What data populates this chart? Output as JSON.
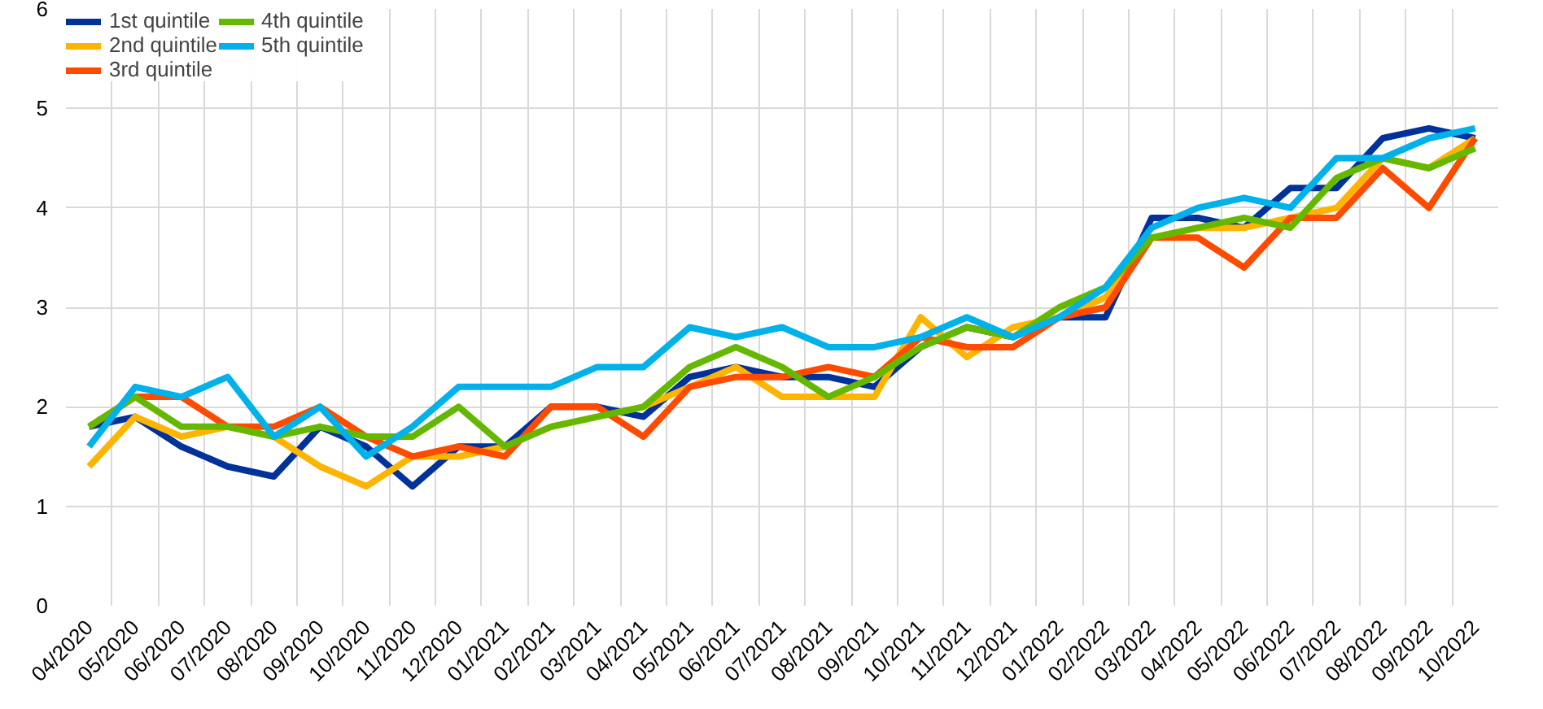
{
  "chart_data": {
    "type": "line",
    "categories": [
      "04/2020",
      "05/2020",
      "06/2020",
      "07/2020",
      "08/2020",
      "09/2020",
      "10/2020",
      "11/2020",
      "12/2020",
      "01/2021",
      "02/2021",
      "03/2021",
      "04/2021",
      "05/2021",
      "06/2021",
      "07/2021",
      "08/2021",
      "09/2021",
      "10/2021",
      "11/2021",
      "12/2021",
      "01/2022",
      "02/2022",
      "03/2022",
      "04/2022",
      "05/2022",
      "06/2022",
      "07/2022",
      "08/2022",
      "09/2022",
      "10/2022"
    ],
    "series": [
      {
        "name": "1st quintile",
        "color": "#003299",
        "values": [
          1.8,
          1.9,
          1.6,
          1.4,
          1.3,
          1.8,
          1.6,
          1.2,
          1.6,
          1.6,
          2.0,
          2.0,
          1.9,
          2.3,
          2.4,
          2.3,
          2.3,
          2.2,
          2.6,
          2.8,
          2.7,
          2.9,
          2.9,
          3.9,
          3.9,
          3.8,
          4.2,
          4.2,
          4.7,
          4.8,
          4.7
        ]
      },
      {
        "name": "2nd quintile",
        "color": "#ffb400",
        "values": [
          1.4,
          1.9,
          1.7,
          1.8,
          1.7,
          1.4,
          1.2,
          1.5,
          1.5,
          1.6,
          1.8,
          1.9,
          2.0,
          2.2,
          2.4,
          2.1,
          2.1,
          2.1,
          2.9,
          2.5,
          2.8,
          2.9,
          3.1,
          3.7,
          3.8,
          3.8,
          3.9,
          4.0,
          4.5,
          4.4,
          4.7
        ]
      },
      {
        "name": "3rd quintile",
        "color": "#ff4b00",
        "values": [
          1.8,
          2.1,
          2.1,
          1.8,
          1.8,
          2.0,
          1.7,
          1.5,
          1.6,
          1.5,
          2.0,
          2.0,
          1.7,
          2.2,
          2.3,
          2.3,
          2.4,
          2.3,
          2.7,
          2.6,
          2.6,
          2.9,
          3.0,
          3.7,
          3.7,
          3.4,
          3.9,
          3.9,
          4.4,
          4.0,
          4.7
        ]
      },
      {
        "name": "4th quintile",
        "color": "#65b800",
        "values": [
          1.8,
          2.1,
          1.8,
          1.8,
          1.7,
          1.8,
          1.7,
          1.7,
          2.0,
          1.6,
          1.8,
          1.9,
          2.0,
          2.4,
          2.6,
          2.4,
          2.1,
          2.3,
          2.6,
          2.8,
          2.7,
          3.0,
          3.2,
          3.7,
          3.8,
          3.9,
          3.8,
          4.3,
          4.5,
          4.4,
          4.6
        ]
      },
      {
        "name": "5th quintile",
        "color": "#00b1ea",
        "values": [
          1.6,
          2.2,
          2.1,
          2.3,
          1.7,
          2.0,
          1.5,
          1.8,
          2.2,
          2.2,
          2.2,
          2.4,
          2.4,
          2.8,
          2.7,
          2.8,
          2.6,
          2.6,
          2.7,
          2.9,
          2.7,
          2.9,
          3.2,
          3.8,
          4.0,
          4.1,
          4.0,
          4.5,
          4.5,
          4.7,
          4.8
        ]
      }
    ],
    "ylim": [
      0,
      6
    ],
    "yticks": [
      0,
      1,
      2,
      3,
      4,
      5,
      6
    ],
    "grid": true,
    "legend": "top left",
    "line_style": "solid",
    "marker": "none"
  }
}
